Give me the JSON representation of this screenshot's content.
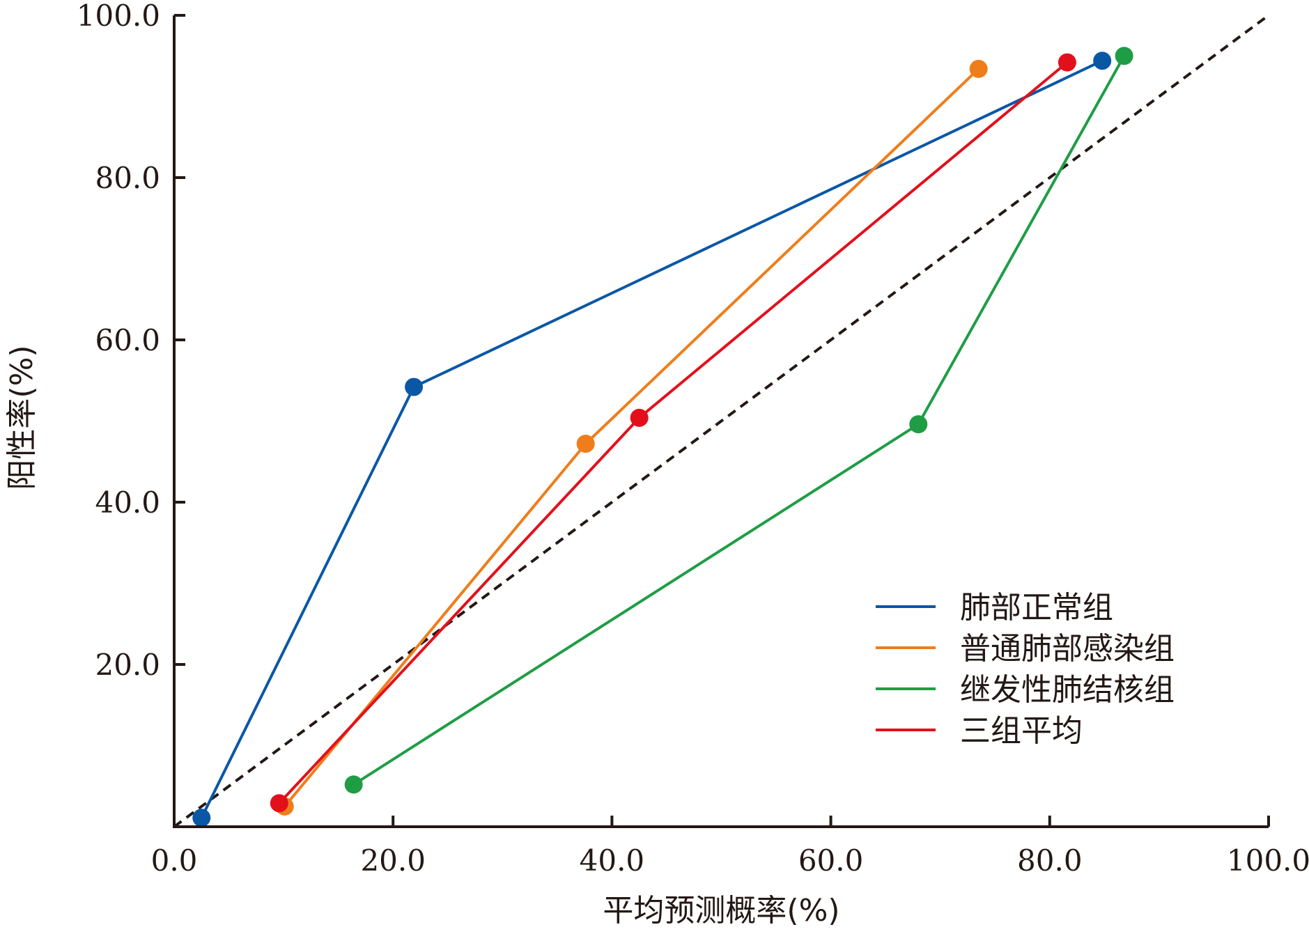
{
  "chart_data": {
    "type": "line",
    "title": "",
    "xlabel": "平均预测概率(%)",
    "ylabel": "阳性率(%)",
    "xlim": [
      0,
      100
    ],
    "ylim": [
      0,
      100
    ],
    "x_ticks": [
      "0.0",
      "20.0",
      "40.0",
      "60.0",
      "80.0",
      "100.0"
    ],
    "y_ticks": [
      "20.0",
      "40.0",
      "60.0",
      "80.0",
      "100.0"
    ],
    "reference_line": {
      "style": "dashed",
      "color": "#231815",
      "from": [
        0,
        0
      ],
      "to": [
        100,
        100
      ]
    },
    "legend_position": "bottom-right",
    "series": [
      {
        "name": "肺部正常组",
        "color": "#0a57a6",
        "x": [
          2.5,
          21.9,
          84.8
        ],
        "y": [
          1.1,
          54.2,
          94.4
        ]
      },
      {
        "name": "普通肺部感染组",
        "color": "#ef7d1a",
        "x": [
          10.1,
          37.6,
          73.5
        ],
        "y": [
          2.5,
          47.2,
          93.4
        ]
      },
      {
        "name": "继发性肺结核组",
        "color": "#1f9d45",
        "x": [
          16.4,
          68.0,
          86.8
        ],
        "y": [
          5.2,
          49.6,
          95.0
        ]
      },
      {
        "name": "三组平均",
        "color": "#e3101b",
        "x": [
          9.6,
          42.5,
          81.6
        ],
        "y": [
          2.9,
          50.4,
          94.2
        ]
      }
    ]
  }
}
